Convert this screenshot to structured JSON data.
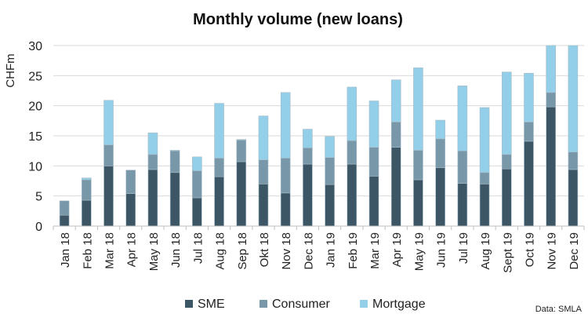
{
  "chart_data": {
    "type": "bar",
    "stacked": true,
    "title": "Monthly volume (new loans)",
    "ylabel": "CHFm",
    "xlabel": "",
    "ylim": [
      0,
      30
    ],
    "yticks": [
      0,
      5,
      10,
      15,
      20,
      25,
      30
    ],
    "grid": "horizontal",
    "legend_position": "bottom",
    "source_note": "Data: SMLA",
    "categories": [
      "Jan 18",
      "Feb 18",
      "Mar 18",
      "Apr 18",
      "May 18",
      "Jun 18",
      "Jul 18",
      "Aug 18",
      "Sep 18",
      "Okt 18",
      "Nov 18",
      "Dec 18",
      "Jan 19",
      "Feb 19",
      "Mar 19",
      "Apr 19",
      "May 19",
      "Jun 19",
      "Jul 19",
      "Aug 19",
      "Sept 19",
      "Oct 19",
      "Nov 19",
      "Dec 19"
    ],
    "series": [
      {
        "name": "SME",
        "color": "#3d5666",
        "values": [
          1.8,
          4.3,
          10.0,
          5.4,
          9.4,
          8.9,
          4.7,
          8.2,
          10.7,
          7.0,
          5.5,
          10.3,
          6.9,
          10.3,
          8.3,
          13.1,
          7.7,
          9.7,
          7.1,
          7.0,
          9.5,
          14.1,
          19.8,
          9.4
        ]
      },
      {
        "name": "Consumer",
        "color": "#7898aa",
        "values": [
          2.4,
          3.4,
          3.5,
          3.9,
          2.5,
          3.6,
          4.5,
          3.1,
          3.6,
          4.0,
          5.8,
          2.7,
          4.5,
          3.9,
          4.8,
          4.2,
          4.9,
          4.8,
          5.4,
          1.9,
          2.4,
          3.2,
          2.4,
          2.9
        ]
      },
      {
        "name": "Mortgage",
        "color": "#93cfe8",
        "values": [
          0.0,
          0.3,
          7.4,
          0.0,
          3.6,
          0.1,
          2.3,
          9.1,
          0.1,
          7.3,
          10.9,
          3.1,
          3.5,
          8.9,
          7.7,
          7.0,
          13.7,
          3.1,
          10.8,
          10.8,
          13.7,
          8.1,
          7.8,
          17.7
        ]
      }
    ]
  }
}
